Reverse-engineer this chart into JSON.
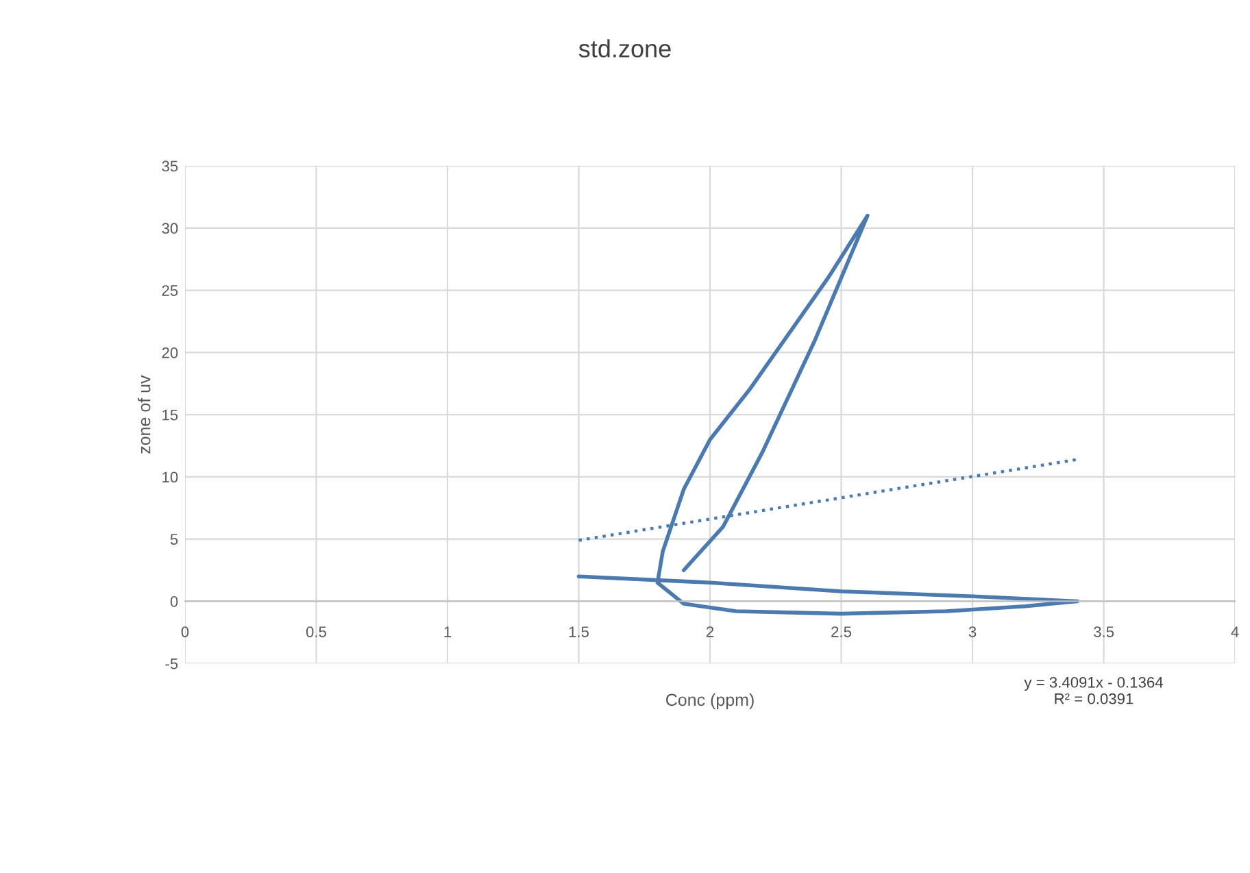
{
  "chart_data": {
    "type": "line",
    "title": "std.zone",
    "xlabel": "Conc (ppm)",
    "ylabel": "zone of uv",
    "xlim": [
      0,
      4
    ],
    "xticks": [
      0,
      0.5,
      1,
      1.5,
      2,
      2.5,
      3,
      3.5,
      4
    ],
    "ylim": [
      -5,
      35
    ],
    "yticks": [
      -5,
      0,
      5,
      10,
      15,
      20,
      25,
      30,
      35
    ],
    "grid": true,
    "legend": false,
    "marker": "none",
    "series": [
      {
        "color": "#4a7ab0",
        "line_style": "solid",
        "x": [
          1.5,
          2.0,
          2.5,
          3.0,
          3.4,
          3.2,
          2.9,
          2.5,
          2.1,
          1.9,
          1.8,
          1.82,
          1.9,
          2.0,
          2.15,
          2.3,
          2.45,
          2.6,
          2.4,
          2.2,
          2.05,
          1.9
        ],
        "values": [
          2.0,
          1.5,
          0.8,
          0.4,
          0.0,
          -0.4,
          -0.8,
          -1.0,
          -0.8,
          -0.2,
          1.5,
          4,
          9,
          13,
          17,
          21.5,
          26,
          31,
          21,
          12,
          6,
          2.5
        ]
      },
      {
        "color": "#4a7ab0",
        "line_style": "dotted",
        "x": [
          1.5,
          3.4
        ],
        "values": [
          4.9,
          11.4
        ]
      }
    ],
    "annotations": [
      "y = 3.4091x - 0.1364\nR² = 0.0391"
    ]
  }
}
